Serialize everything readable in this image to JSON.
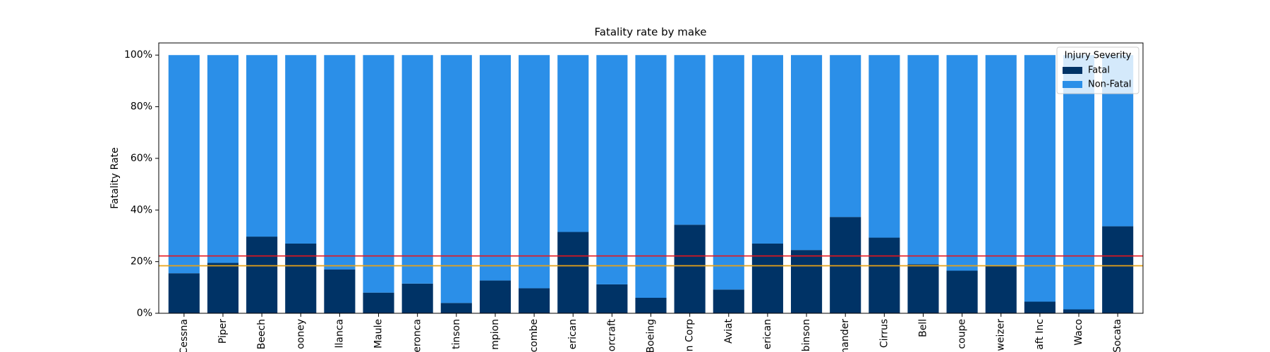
{
  "chart_data": {
    "type": "stacked-bar",
    "title": "Fatality rate by make",
    "y_label": "Fatality Rate",
    "categories": [
      "Cessna",
      "Piper",
      "Beech",
      "ooney",
      "llanca",
      "Maule",
      "eronca",
      "tinson",
      "mpion",
      "combe",
      "erican",
      "orcraft",
      "Boeing",
      "n Corp",
      "Aviat",
      "erican",
      "binson",
      "nander",
      "Cirrus",
      "Bell",
      "coupe",
      "weizer",
      "aft Inc",
      "Waco",
      "Socata"
    ],
    "series": [
      {
        "name": "Fatal",
        "color": "#003366",
        "values": [
          15.5,
          19.5,
          29.7,
          27,
          17,
          8,
          11.5,
          4,
          12.7,
          9.7,
          31.5,
          11.2,
          6,
          34.3,
          9.2,
          27,
          24.5,
          37.3,
          29.3,
          19,
          16.5,
          18.3,
          4.5,
          1.5,
          33.7
        ]
      },
      {
        "name": "Non-Fatal",
        "color": "#2b8fe8",
        "values": [
          84.5,
          80.5,
          70.3,
          73,
          83,
          92,
          88.5,
          96,
          87.3,
          90.3,
          68.5,
          88.8,
          94,
          65.7,
          90.8,
          73,
          75.5,
          62.7,
          70.7,
          81,
          83.5,
          81.7,
          95.5,
          98.5,
          66.3
        ]
      }
    ],
    "ylim": [
      0,
      104.7
    ],
    "yticks": [
      {
        "value": 0,
        "label": "0%"
      },
      {
        "value": 20,
        "label": "20%"
      },
      {
        "value": 40,
        "label": "40%"
      },
      {
        "value": 60,
        "label": "60%"
      },
      {
        "value": 80,
        "label": "80%"
      },
      {
        "value": 100,
        "label": "100%"
      }
    ],
    "reference_lines": [
      {
        "value": 22.2,
        "color": "#e8141c"
      },
      {
        "value": 18.4,
        "color": "#e8a317"
      }
    ],
    "legend_title": "Injury Severity",
    "legend_position": "upper right"
  }
}
